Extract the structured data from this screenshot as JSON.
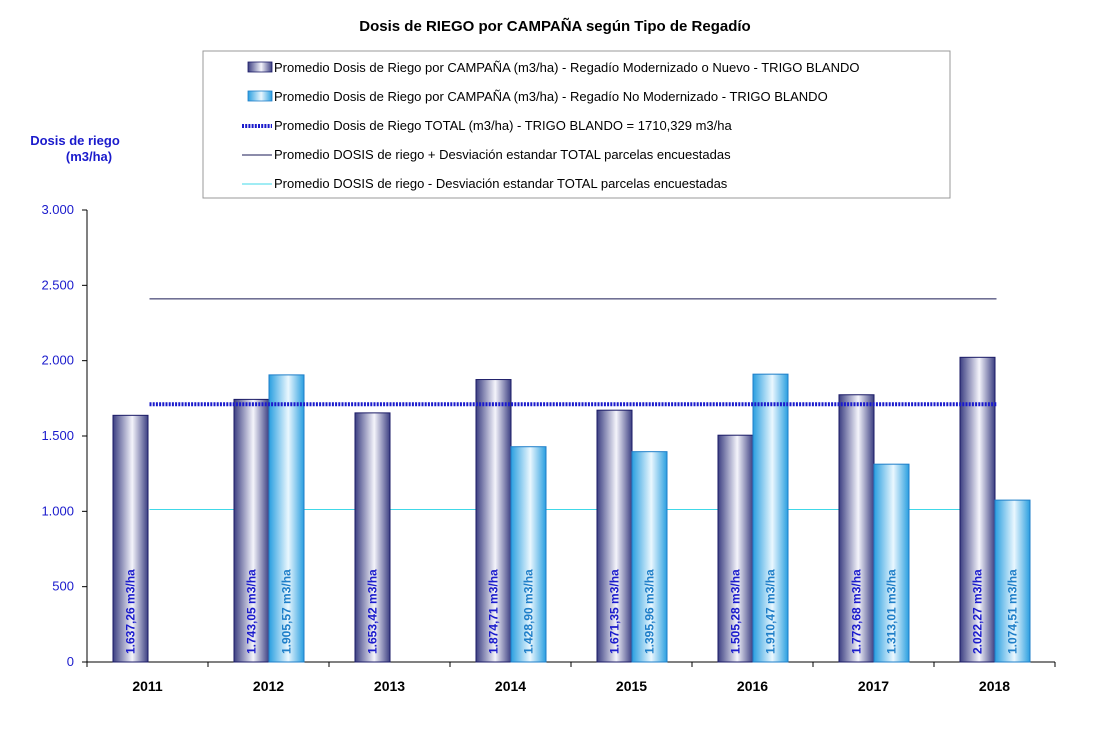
{
  "chart_data": {
    "type": "bar",
    "title": "Dosis de RIEGO por CAMPAÑA según Tipo de Regadío",
    "ylabel_line1": "Dosis de riego",
    "ylabel_line2": "(m3/ha)",
    "xlabel": "",
    "ylim": [
      0,
      3000
    ],
    "yticks": [
      {
        "value": 0,
        "label": "0"
      },
      {
        "value": 500,
        "label": "500"
      },
      {
        "value": 1000,
        "label": "1.000"
      },
      {
        "value": 1500,
        "label": "1.500"
      },
      {
        "value": 2000,
        "label": "2.000"
      },
      {
        "value": 2500,
        "label": "2.500"
      },
      {
        "value": 3000,
        "label": "3.000"
      }
    ],
    "grid": false,
    "legend_position": "top",
    "categories": [
      "2011",
      "2012",
      "2013",
      "2014",
      "2015",
      "2016",
      "2017",
      "2018"
    ],
    "series": [
      {
        "name": "Promedio Dosis de Riego por CAMPAÑA (m3/ha) - Regadío Modernizado o Nuevo - TRIGO BLANDO",
        "values": [
          1637.26,
          1743.05,
          1653.42,
          1874.71,
          1671.35,
          1505.28,
          1773.68,
          2022.27
        ],
        "labels": [
          "1.637,26 m3/ha",
          "1.743,05 m3/ha",
          "1.653,42 m3/ha",
          "1.874,71 m3/ha",
          "1.671,35 m3/ha",
          "1.505,28 m3/ha",
          "1.773,68 m3/ha",
          "2.022,27 m3/ha"
        ],
        "color": "#8a90c0",
        "label_color": "#1a1acc"
      },
      {
        "name": "Promedio Dosis de Riego por CAMPAÑA (m3/ha) - Regadío No Modernizado - TRIGO BLANDO",
        "values": [
          null,
          1905.57,
          null,
          1428.9,
          1395.96,
          1910.47,
          1313.01,
          1074.51
        ],
        "labels": [
          "",
          "1.905,57 m3/ha",
          "",
          "1.428,90 m3/ha",
          "1.395,96 m3/ha",
          "1.910,47 m3/ha",
          "1.313,01 m3/ha",
          "1.074,51 m3/ha"
        ],
        "color": "#55b8ec",
        "label_color": "#1e7ec8"
      }
    ],
    "reference_lines": [
      {
        "name": "Promedio Dosis de Riego TOTAL (m3/ha) - TRIGO BLANDO = 1710,329 m3/ha",
        "value": 1710.329,
        "color": "#1a1acc",
        "style": "dotted-thick"
      },
      {
        "name": "Promedio DOSIS de riego + Desviación estandar TOTAL parcelas encuestadas",
        "value": 2410,
        "color": "#1a1a55",
        "style": "solid"
      },
      {
        "name": "Promedio DOSIS de riego - Desviación estandar TOTAL parcelas encuestadas",
        "value": 1012,
        "color": "#40d8e8",
        "style": "solid"
      }
    ]
  }
}
